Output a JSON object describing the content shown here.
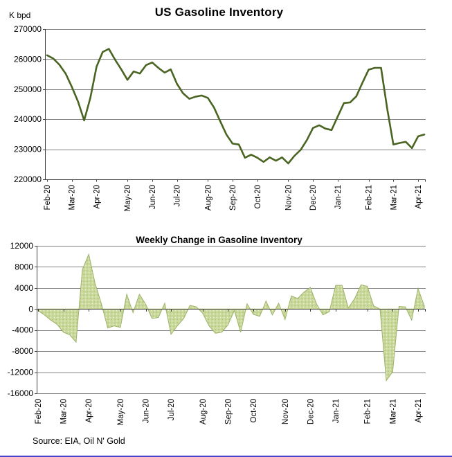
{
  "page": {
    "bottom_rule_color": "#4444cc",
    "background": "#ffffff"
  },
  "source": {
    "text": "Source: EIA, Oil N' Gold"
  },
  "chart_data": [
    {
      "type": "line",
      "title": "US Gasoline Inventory",
      "ylabel": "K bpd",
      "xlabel": "",
      "ylim": [
        220000,
        270000
      ],
      "ytick_labels": [
        "270000",
        "260000",
        "250000",
        "240000",
        "230000",
        "220000"
      ],
      "grid": "horizontal",
      "legend": "none",
      "line_color": "#4a6422",
      "x_tick_labels": [
        "Feb-20",
        "Mar-20",
        "Apr-20",
        "May-20",
        "Jun-20",
        "Jul-20",
        "Aug-20",
        "Sep-20",
        "Oct-20",
        "Nov-20",
        "Dec-20",
        "Jan-21",
        "Feb-21",
        "Mar-21",
        "Apr-21"
      ],
      "x_tick_indices": [
        0,
        4,
        8,
        13,
        17,
        21,
        26,
        30,
        34,
        39,
        43,
        47,
        52,
        56,
        60
      ],
      "values": [
        261300,
        260200,
        258100,
        255200,
        250800,
        245900,
        239600,
        247100,
        257500,
        262400,
        263400,
        259800,
        256600,
        253100,
        255900,
        255200,
        258000,
        258900,
        257100,
        255500,
        256600,
        251800,
        248600,
        246800,
        247500,
        247900,
        247100,
        243900,
        239300,
        234900,
        231900,
        231600,
        227200,
        228200,
        227200,
        225800,
        227300,
        226200,
        227300,
        225300,
        227800,
        229800,
        233000,
        237100,
        238000,
        236900,
        236400,
        240900,
        245400,
        245600,
        247600,
        252200,
        256500,
        257100,
        257100,
        243500,
        231600,
        232100,
        232500,
        230400,
        234300,
        234900
      ]
    },
    {
      "type": "area",
      "title": "Weekly Change in Gasoline Inventory",
      "ylabel": "",
      "xlabel": "",
      "ylim": [
        -16000,
        12000
      ],
      "ytick_labels": [
        "12000",
        "8000",
        "4000",
        "0",
        "-4000",
        "-8000",
        "-12000",
        "-16000"
      ],
      "grid": "horizontal",
      "legend": "none",
      "fill_color": "#cbd89c",
      "fill_dot_colors": [
        "#a3c573",
        "#eef3da"
      ],
      "edge_color": "#9db269",
      "x_tick_labels": [
        "Feb-20",
        "Mar-20",
        "Apr-20",
        "May-20",
        "Jun-20",
        "Jul-20",
        "Aug-20",
        "Sep-20",
        "Oct-20",
        "Nov-20",
        "Dec-20",
        "Jan-21",
        "Feb-21",
        "Mar-21",
        "Apr-21"
      ],
      "x_tick_indices": [
        0,
        4,
        8,
        13,
        17,
        21,
        26,
        30,
        34,
        39,
        43,
        47,
        52,
        56,
        60
      ],
      "values": [
        -300,
        -1100,
        -2100,
        -2900,
        -4400,
        -4900,
        -6300,
        7500,
        10400,
        4900,
        1000,
        -3600,
        -3200,
        -3500,
        2800,
        -700,
        2800,
        900,
        -1800,
        -1600,
        1100,
        -4800,
        -3200,
        -1800,
        700,
        400,
        -800,
        -3200,
        -4600,
        -4400,
        -3000,
        -300,
        -4400,
        1000,
        -1000,
        -1400,
        1500,
        -1100,
        1100,
        -2000,
        2500,
        2000,
        3200,
        4100,
        900,
        -1100,
        -500,
        4500,
        4500,
        200,
        2000,
        4600,
        4300,
        600,
        0,
        -13600,
        -11900,
        500,
        400,
        -2100,
        3900,
        600
      ]
    }
  ]
}
